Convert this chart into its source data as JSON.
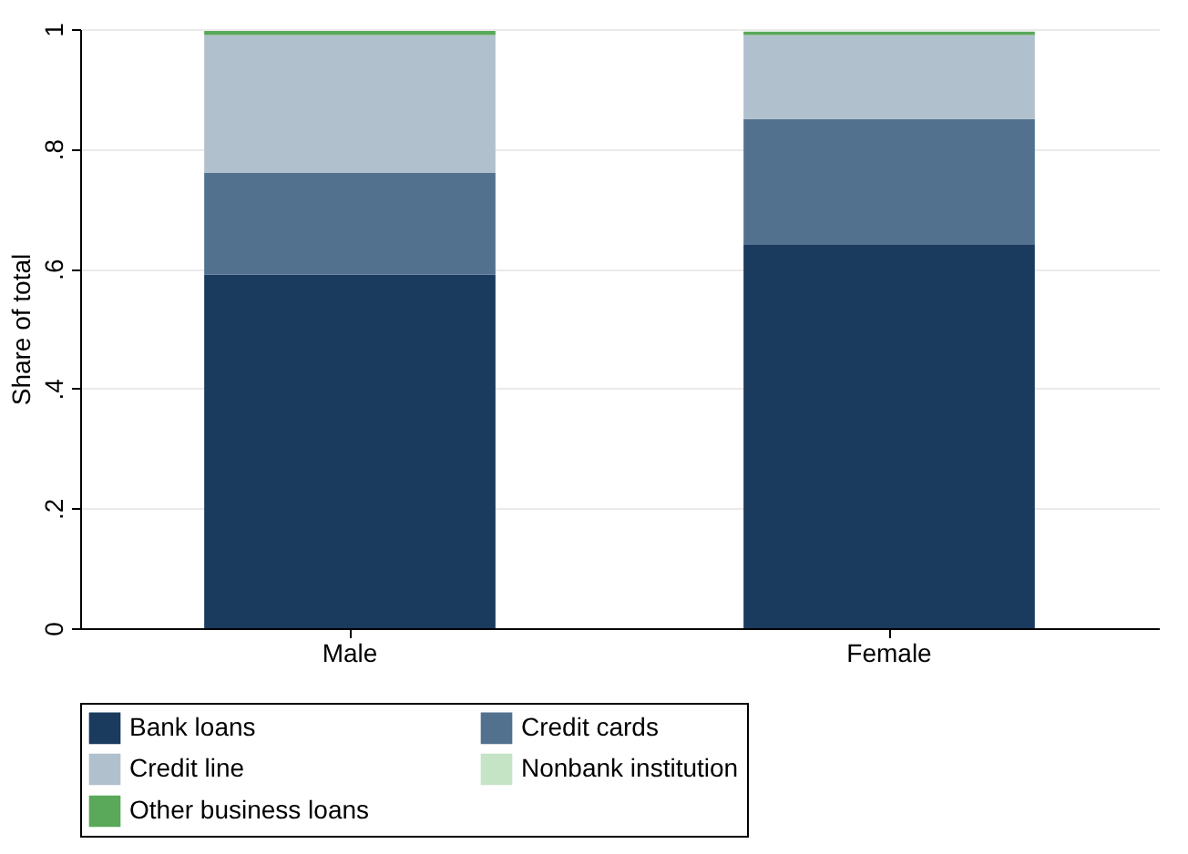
{
  "chart_data": {
    "type": "bar",
    "stacked": true,
    "ylabel": "Share of total",
    "categories": [
      "Male",
      "Female"
    ],
    "series": [
      {
        "name": "Bank loans",
        "color": "#1a3a5e",
        "values": [
          0.59,
          0.64
        ]
      },
      {
        "name": "Credit cards",
        "color": "#52718f",
        "values": [
          0.17,
          0.21
        ]
      },
      {
        "name": "Credit line",
        "color": "#b1c0cd",
        "values": [
          0.23,
          0.14
        ]
      },
      {
        "name": "Nonbank institution",
        "color": "#c5e3c5",
        "values": [
          null,
          null
        ]
      },
      {
        "name": "Other business loans",
        "color": "#5aa85a",
        "values": [
          0.007,
          0.006
        ]
      }
    ],
    "ylim": [
      0,
      1
    ],
    "yticks": [
      0,
      {
        "value": 0.2,
        "label": ".2"
      },
      {
        "value": 0.4,
        "label": ".4"
      },
      {
        "value": 0.6,
        "label": ".6"
      },
      {
        "value": 0.8,
        "label": ".8"
      },
      1
    ],
    "grid": "y",
    "legend": "bottom"
  }
}
